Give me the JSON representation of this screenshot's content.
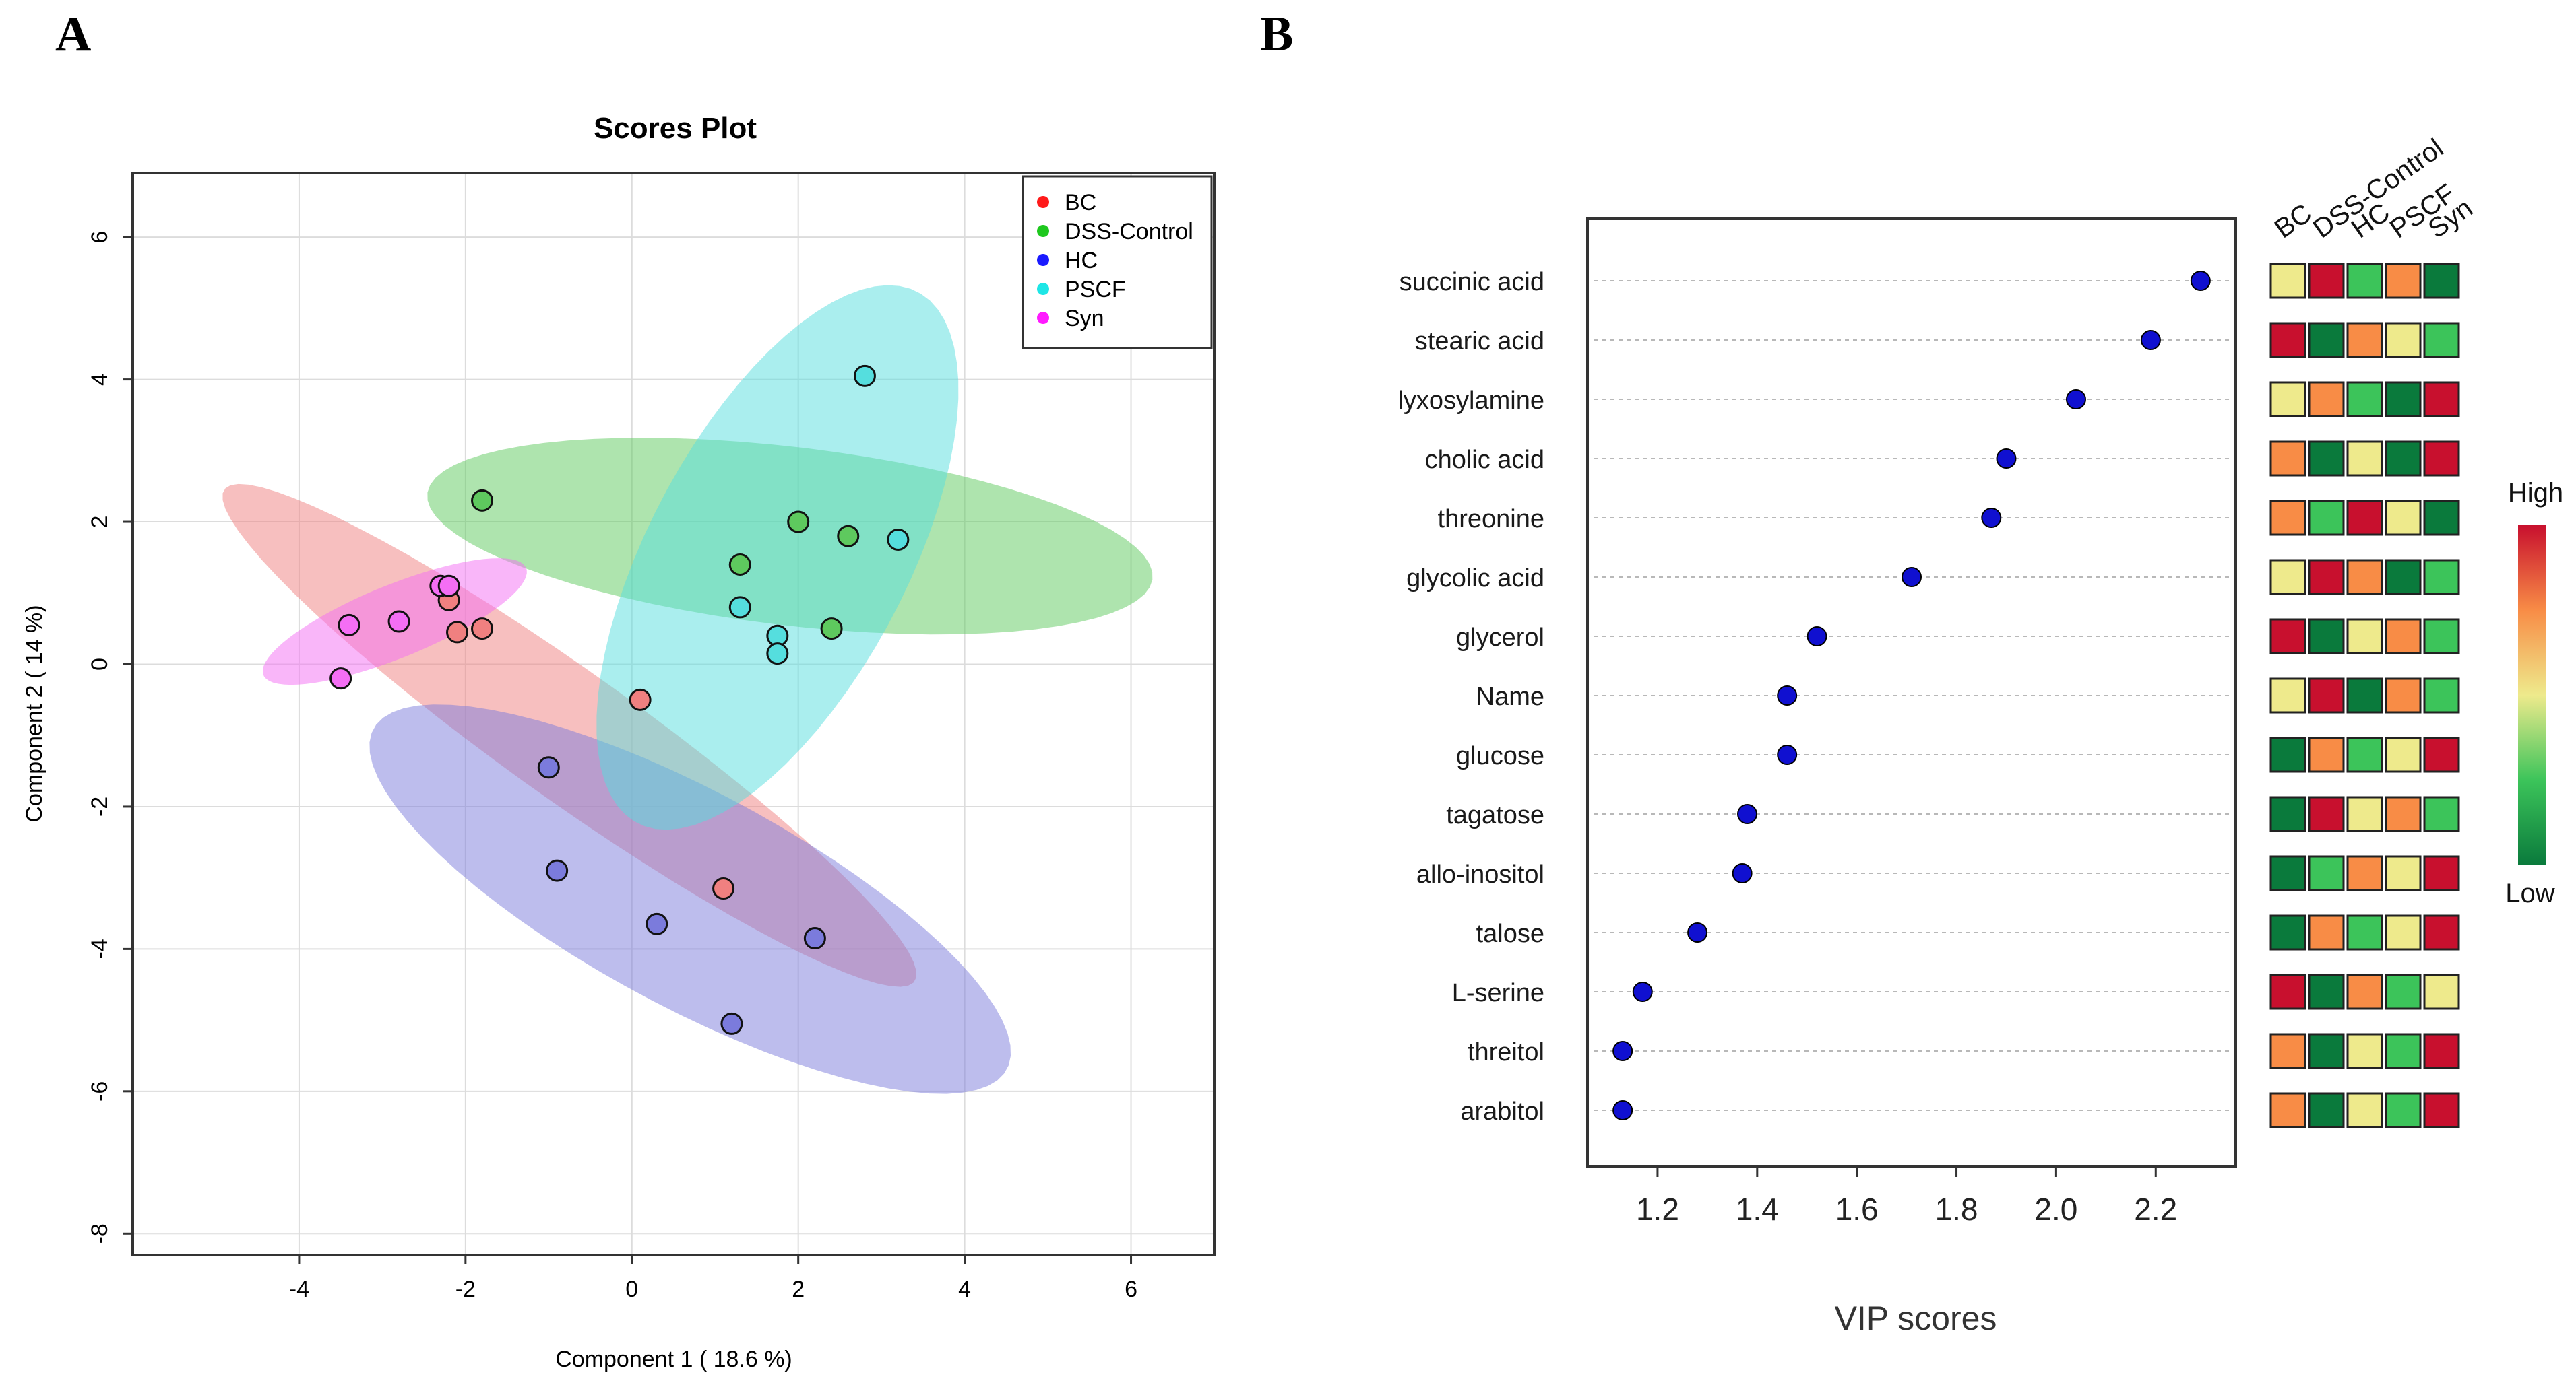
{
  "panels": {
    "a": {
      "letter": "A"
    },
    "b": {
      "letter": "B"
    }
  },
  "colors": {
    "BC": "#f08080",
    "DSS-Control": "#5ec95e",
    "HC": "#7b7bdc",
    "PSCF": "#55dede",
    "Syn": "#f46ef4",
    "legend_BC": "#ff1a1a",
    "legend_DSS-Control": "#1ec81e",
    "legend_HC": "#1a1aff",
    "legend_PSCF": "#1ee6e6",
    "legend_Syn": "#ff1aff",
    "vip_point": "#1010d0",
    "heat_low": "#0a7a3c",
    "heat_mid_low": "#3cc45a",
    "heat_mid": "#eeea8c",
    "heat_mid_high": "#f88c46",
    "heat_high": "#c8102e"
  },
  "chart_data": [
    {
      "type": "scatter",
      "title": "Scores Plot",
      "xlabel": "Component 1 ( 18.6 %)",
      "ylabel": "Component 2 ( 14 %)",
      "xlim": [
        -6,
        7
      ],
      "ylim": [
        -8.3,
        6.9
      ],
      "xticks": [
        -4,
        -2,
        0,
        2,
        4,
        6
      ],
      "yticks": [
        -8,
        -6,
        -4,
        -2,
        0,
        2,
        4,
        6
      ],
      "grid": true,
      "legend_position": "top-right",
      "groups": [
        {
          "name": "BC",
          "points": [
            [
              -2.2,
              0.9
            ],
            [
              -2.1,
              0.45
            ],
            [
              -1.8,
              0.5
            ],
            [
              0.1,
              -0.5
            ],
            [
              1.1,
              -3.15
            ]
          ],
          "ellipse": {
            "center": [
              -0.75,
              -1.0
            ],
            "semi_major": 5.4,
            "semi_minor": 0.85,
            "angle_deg": -40
          }
        },
        {
          "name": "DSS-Control",
          "points": [
            [
              -1.8,
              2.3
            ],
            [
              1.3,
              1.4
            ],
            [
              2.0,
              2.0
            ],
            [
              2.6,
              1.8
            ],
            [
              2.4,
              0.5
            ]
          ],
          "ellipse": {
            "center": [
              1.9,
              1.8
            ],
            "semi_major": 4.4,
            "semi_minor": 1.25,
            "angle_deg": -8
          }
        },
        {
          "name": "HC",
          "points": [
            [
              -1.0,
              -1.45
            ],
            [
              -0.9,
              -2.9
            ],
            [
              0.3,
              -3.65
            ],
            [
              1.2,
              -5.05
            ],
            [
              2.2,
              -3.85
            ]
          ],
          "ellipse": {
            "center": [
              0.7,
              -3.3
            ],
            "semi_major": 4.5,
            "semi_minor": 1.45,
            "angle_deg": -33
          }
        },
        {
          "name": "PSCF",
          "points": [
            [
              2.8,
              4.05
            ],
            [
              3.2,
              1.75
            ],
            [
              1.3,
              0.8
            ],
            [
              1.75,
              0.4
            ],
            [
              1.75,
              0.15
            ]
          ],
          "ellipse": {
            "center": [
              1.75,
              1.5
            ],
            "semi_major": 4.1,
            "semi_minor": 1.6,
            "angle_deg": 67
          }
        },
        {
          "name": "Syn",
          "points": [
            [
              -2.3,
              1.1
            ],
            [
              -2.2,
              1.1
            ],
            [
              -2.8,
              0.6
            ],
            [
              -3.4,
              0.55
            ],
            [
              -3.5,
              -0.2
            ]
          ],
          "ellipse": {
            "center": [
              -2.85,
              0.6
            ],
            "semi_major": 1.75,
            "semi_minor": 0.5,
            "angle_deg": 26
          }
        }
      ]
    },
    {
      "type": "scatter",
      "title": "",
      "xlabel": "VIP scores",
      "ylabel": "",
      "xlim": [
        1.1,
        2.32
      ],
      "xticks": [
        1.2,
        1.4,
        1.6,
        1.8,
        2.0,
        2.2
      ],
      "grid": true,
      "metabolites": [
        "succinic acid",
        "stearic acid",
        "lyxosylamine",
        "cholic acid",
        "threonine",
        "glycolic acid",
        "glycerol",
        "Name",
        "glucose",
        "tagatose",
        "allo-inositol",
        "talose",
        "L-serine",
        "threitol",
        "arabitol"
      ],
      "values": [
        2.29,
        2.19,
        2.04,
        1.9,
        1.87,
        1.71,
        1.52,
        1.46,
        1.46,
        1.38,
        1.37,
        1.28,
        1.17,
        1.13,
        1.13
      ],
      "heatmap": {
        "columns": [
          "BC",
          "DSS-Control",
          "HC",
          "PSCF",
          "Syn"
        ],
        "levels": [
          [
            3,
            5,
            2,
            4,
            1
          ],
          [
            5,
            1,
            4,
            3,
            2
          ],
          [
            3,
            4,
            2,
            1,
            5
          ],
          [
            4,
            1,
            3,
            1,
            5
          ],
          [
            4,
            2,
            5,
            3,
            1
          ],
          [
            3,
            5,
            4,
            1,
            2
          ],
          [
            5,
            1,
            3,
            4,
            2
          ],
          [
            3,
            5,
            1,
            4,
            2
          ],
          [
            1,
            4,
            2,
            3,
            5
          ],
          [
            1,
            5,
            3,
            4,
            2
          ],
          [
            1,
            2,
            4,
            3,
            5
          ],
          [
            1,
            4,
            2,
            3,
            5
          ],
          [
            5,
            1,
            4,
            2,
            3
          ],
          [
            4,
            1,
            3,
            2,
            5
          ],
          [
            4,
            1,
            3,
            2,
            5
          ]
        ],
        "scale_high_label": "High",
        "scale_low_label": "Low"
      }
    }
  ]
}
